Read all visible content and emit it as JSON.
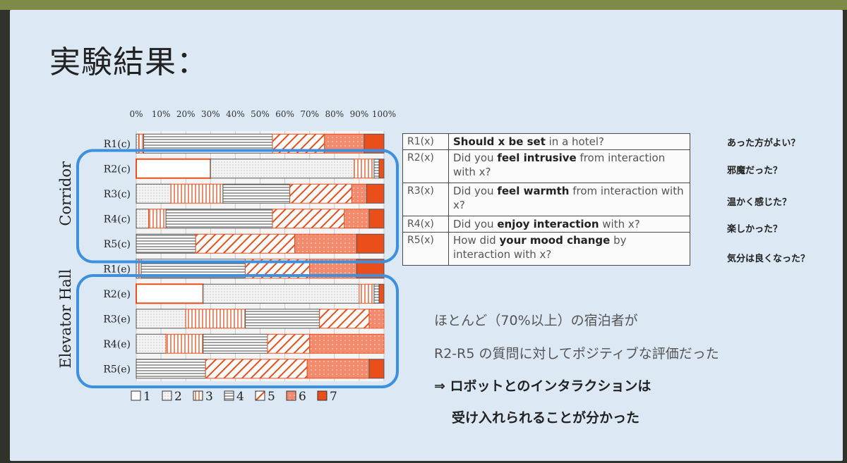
{
  "slide": {
    "title": "実験結果：",
    "questions": [
      {
        "code": "R1(x)",
        "pre": "",
        "bold": "Should x be set",
        "post": " in a hotel?",
        "jp": "あった方がよい？"
      },
      {
        "code": "R2(x)",
        "pre": "Did you ",
        "bold": "feel intrusive",
        "post": " from interaction with x?",
        "jp": "邪魔だった？"
      },
      {
        "code": "R3(x)",
        "pre": "Did you ",
        "bold": "feel warmth",
        "post": " from interaction with x?",
        "jp": "温かく感じた？"
      },
      {
        "code": "R4(x)",
        "pre": "Did you ",
        "bold": "enjoy interaction",
        "post": " with x?",
        "jp": "楽しかった？"
      },
      {
        "code": "R5(x)",
        "pre": "How did ",
        "bold": "your mood change",
        "post": " by interaction with x?",
        "jp": "気分は良くなった？"
      }
    ],
    "summary": [
      "ほとんど（70%以上）の宿泊者が",
      "R2-R5 の質問に対してポジティブな評価だった",
      "⇒ ロボットとのインタラクションは",
      "受け入れられることが分かった"
    ]
  },
  "chart_data": {
    "type": "bar",
    "stacked": true,
    "orientation": "horizontal",
    "xlim": [
      0,
      100
    ],
    "x_ticks": [
      "0%",
      "10%",
      "20%",
      "30%",
      "40%",
      "50%",
      "60%",
      "70%",
      "80%",
      "90%",
      "100%"
    ],
    "groups": [
      {
        "label": "Corridor",
        "rows": [
          "R1(c)",
          "R2(c)",
          "R3(c)",
          "R4(c)",
          "R5(c)"
        ]
      },
      {
        "label": "Elevator Hall",
        "rows": [
          "R1(e)",
          "R2(e)",
          "R3(e)",
          "R4(e)",
          "R5(e)"
        ]
      }
    ],
    "legend": [
      "1",
      "2",
      "3",
      "4",
      "5",
      "6",
      "7"
    ],
    "legend_position": "bottom",
    "series_colors": {
      "1": "#ffffff",
      "2": "#f2f2f2",
      "3": "#ffffff",
      "4": "#ffffff",
      "5": "#e94e1b",
      "6": "#f28a6e",
      "7": "#e94e1b"
    },
    "highlight_color": "#3d8fe0",
    "categories": [
      "R1(c)",
      "R2(c)",
      "R3(c)",
      "R4(c)",
      "R5(c)",
      "R1(e)",
      "R2(e)",
      "R3(e)",
      "R4(e)",
      "R5(e)"
    ],
    "series": [
      {
        "name": "1",
        "values": [
          0,
          30,
          0,
          0,
          0,
          0,
          27,
          0,
          0,
          0
        ]
      },
      {
        "name": "2",
        "values": [
          1,
          58,
          14,
          5,
          0,
          1,
          63,
          20,
          12,
          0
        ]
      },
      {
        "name": "3",
        "values": [
          2,
          8,
          21,
          7,
          0,
          1,
          6,
          24,
          15,
          0
        ]
      },
      {
        "name": "4",
        "values": [
          52,
          2,
          27,
          43,
          24,
          42,
          2,
          30,
          26,
          28
        ]
      },
      {
        "name": "5",
        "values": [
          21,
          0,
          25,
          29,
          40,
          26,
          0,
          20,
          17,
          41
        ]
      },
      {
        "name": "6",
        "values": [
          16,
          0,
          6,
          10,
          25,
          19,
          0,
          6,
          30,
          25
        ]
      },
      {
        "name": "7",
        "values": [
          8,
          2,
          7,
          6,
          11,
          11,
          2,
          0,
          0,
          6
        ]
      }
    ]
  }
}
